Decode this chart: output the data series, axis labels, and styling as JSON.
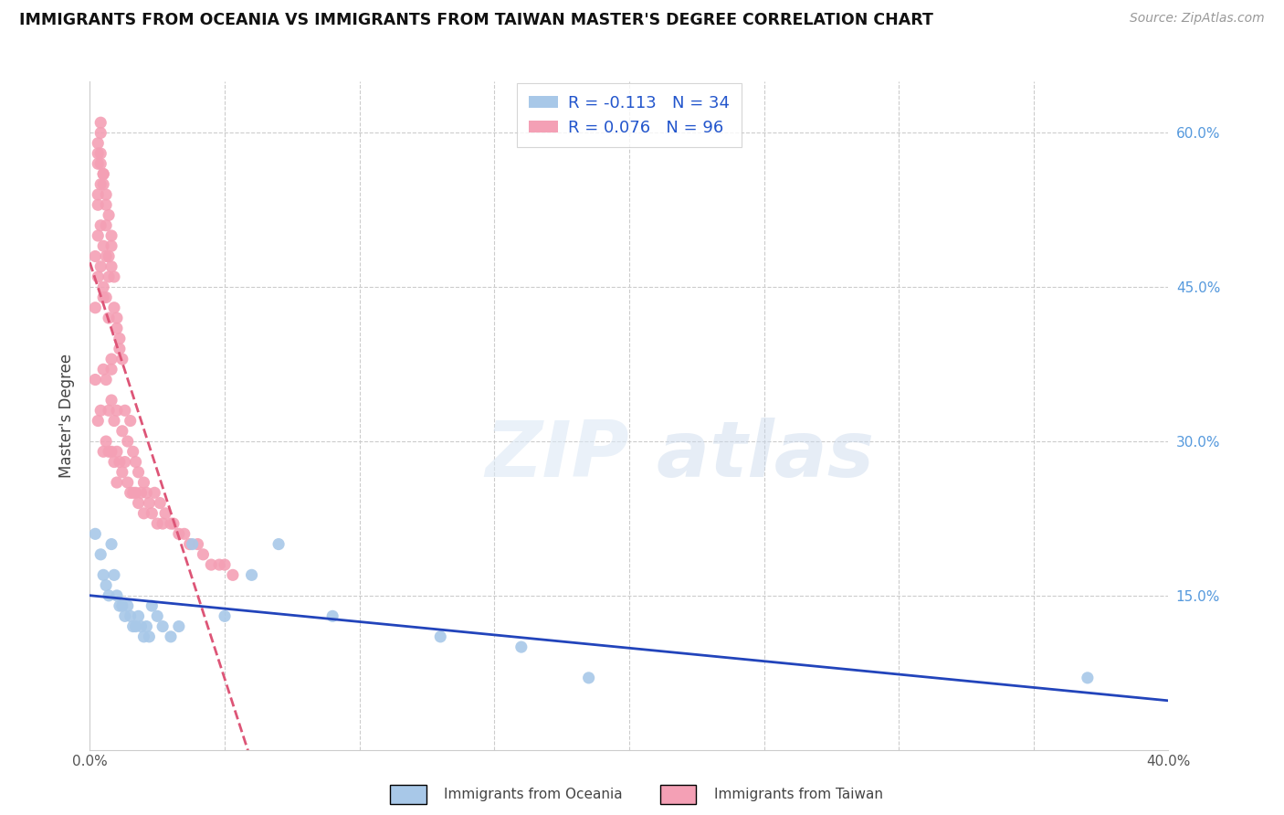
{
  "title": "IMMIGRANTS FROM OCEANIA VS IMMIGRANTS FROM TAIWAN MASTER'S DEGREE CORRELATION CHART",
  "source": "Source: ZipAtlas.com",
  "ylabel": "Master's Degree",
  "legend_r1": "R = -0.113",
  "legend_n1": "N = 34",
  "legend_r2": "R = 0.076",
  "legend_n2": "N = 96",
  "legend_label1": "Immigrants from Oceania",
  "legend_label2": "Immigrants from Taiwan",
  "color_oceania": "#a8c8e8",
  "color_taiwan": "#f4a0b5",
  "color_line_oceania": "#2244bb",
  "color_line_taiwan": "#dd5577",
  "xlim": [
    0.0,
    0.4
  ],
  "ylim": [
    0.0,
    0.65
  ],
  "xticks": [
    0.0,
    0.05,
    0.1,
    0.15,
    0.2,
    0.25,
    0.3,
    0.35,
    0.4
  ],
  "yticks": [
    0.15,
    0.3,
    0.45,
    0.6
  ],
  "right_ytick_labels": [
    "15.0%",
    "30.0%",
    "45.0%",
    "60.0%"
  ],
  "oceania_x": [
    0.002,
    0.004,
    0.005,
    0.006,
    0.007,
    0.008,
    0.009,
    0.01,
    0.011,
    0.012,
    0.013,
    0.014,
    0.015,
    0.016,
    0.017,
    0.018,
    0.019,
    0.02,
    0.021,
    0.022,
    0.023,
    0.025,
    0.027,
    0.03,
    0.033,
    0.038,
    0.05,
    0.06,
    0.07,
    0.09,
    0.13,
    0.16,
    0.185,
    0.37
  ],
  "oceania_y": [
    0.21,
    0.19,
    0.17,
    0.16,
    0.15,
    0.2,
    0.17,
    0.15,
    0.14,
    0.14,
    0.13,
    0.14,
    0.13,
    0.12,
    0.12,
    0.13,
    0.12,
    0.11,
    0.12,
    0.11,
    0.14,
    0.13,
    0.12,
    0.11,
    0.12,
    0.2,
    0.13,
    0.17,
    0.2,
    0.13,
    0.11,
    0.1,
    0.07,
    0.07
  ],
  "taiwan_x": [
    0.002,
    0.002,
    0.003,
    0.003,
    0.004,
    0.004,
    0.005,
    0.005,
    0.005,
    0.006,
    0.006,
    0.006,
    0.007,
    0.007,
    0.007,
    0.008,
    0.008,
    0.008,
    0.009,
    0.009,
    0.01,
    0.01,
    0.01,
    0.011,
    0.011,
    0.012,
    0.012,
    0.013,
    0.013,
    0.014,
    0.014,
    0.015,
    0.015,
    0.016,
    0.016,
    0.017,
    0.017,
    0.018,
    0.018,
    0.019,
    0.02,
    0.02,
    0.021,
    0.022,
    0.023,
    0.024,
    0.025,
    0.026,
    0.027,
    0.028,
    0.03,
    0.031,
    0.033,
    0.035,
    0.037,
    0.04,
    0.042,
    0.045,
    0.048,
    0.05,
    0.053,
    0.002,
    0.003,
    0.004,
    0.005,
    0.006,
    0.007,
    0.008,
    0.009,
    0.01,
    0.011,
    0.012,
    0.003,
    0.004,
    0.005,
    0.006,
    0.007,
    0.008,
    0.009,
    0.01,
    0.003,
    0.004,
    0.005,
    0.006,
    0.007,
    0.008,
    0.003,
    0.004,
    0.005,
    0.006,
    0.003,
    0.004,
    0.005,
    0.003,
    0.004,
    0.008
  ],
  "taiwan_y": [
    0.36,
    0.43,
    0.32,
    0.46,
    0.33,
    0.47,
    0.29,
    0.37,
    0.44,
    0.3,
    0.36,
    0.44,
    0.29,
    0.33,
    0.42,
    0.29,
    0.34,
    0.38,
    0.28,
    0.32,
    0.26,
    0.29,
    0.33,
    0.28,
    0.4,
    0.27,
    0.31,
    0.28,
    0.33,
    0.26,
    0.3,
    0.25,
    0.32,
    0.25,
    0.29,
    0.25,
    0.28,
    0.24,
    0.27,
    0.25,
    0.23,
    0.26,
    0.25,
    0.24,
    0.23,
    0.25,
    0.22,
    0.24,
    0.22,
    0.23,
    0.22,
    0.22,
    0.21,
    0.21,
    0.2,
    0.2,
    0.19,
    0.18,
    0.18,
    0.18,
    0.17,
    0.48,
    0.5,
    0.51,
    0.45,
    0.48,
    0.46,
    0.47,
    0.43,
    0.41,
    0.39,
    0.38,
    0.53,
    0.55,
    0.49,
    0.51,
    0.48,
    0.5,
    0.46,
    0.42,
    0.58,
    0.57,
    0.56,
    0.54,
    0.52,
    0.49,
    0.59,
    0.6,
    0.55,
    0.53,
    0.57,
    0.61,
    0.56,
    0.54,
    0.58,
    0.37
  ]
}
